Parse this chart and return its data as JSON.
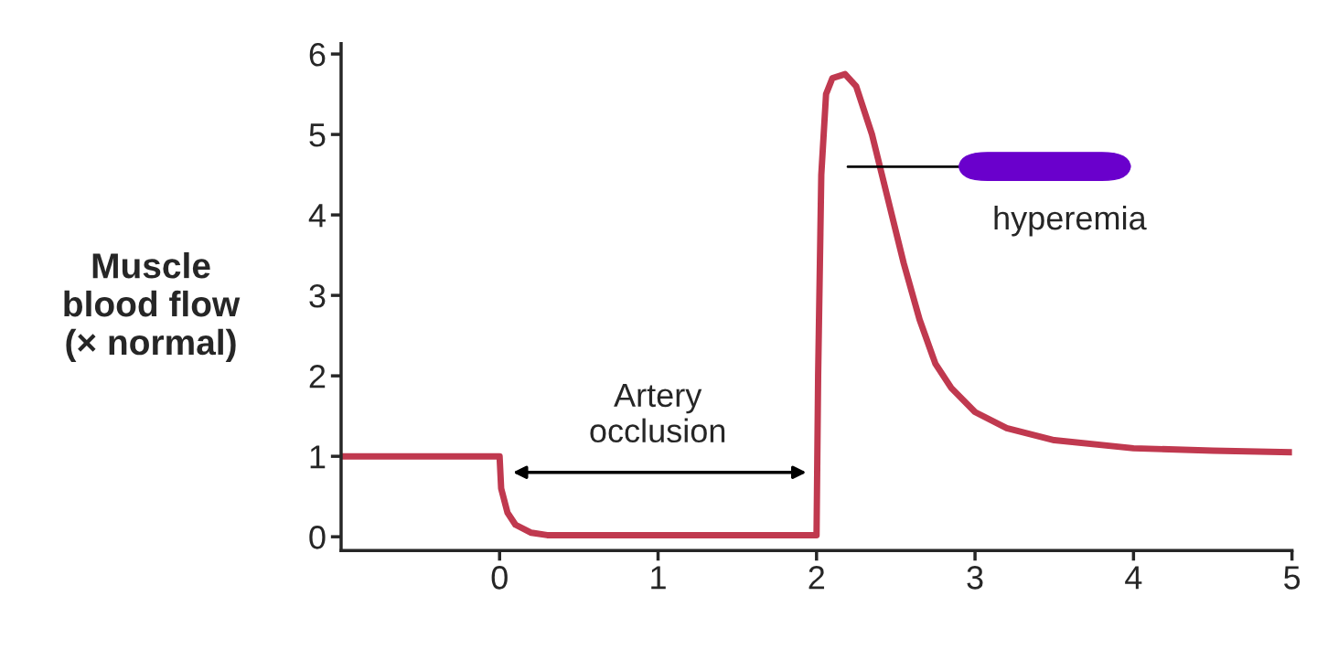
{
  "chart_data": {
    "type": "line",
    "ylabel": "Muscle\nblood flow\n(× normal)",
    "x": [
      -1,
      -0.5,
      0,
      0.01,
      0.05,
      0.1,
      0.2,
      0.3,
      0.5,
      1.0,
      1.5,
      1.99,
      2.0,
      2.01,
      2.03,
      2.06,
      2.1,
      2.18,
      2.25,
      2.35,
      2.45,
      2.55,
      2.65,
      2.75,
      2.85,
      3.0,
      3.2,
      3.5,
      4.0,
      4.5,
      5.0
    ],
    "series": [
      {
        "color": "#c0394f",
        "values": [
          1.0,
          1.0,
          1.0,
          0.6,
          0.3,
          0.15,
          0.05,
          0.02,
          0.02,
          0.02,
          0.02,
          0.02,
          0.02,
          2.0,
          4.5,
          5.5,
          5.7,
          5.75,
          5.6,
          5.0,
          4.2,
          3.4,
          2.7,
          2.15,
          1.85,
          1.55,
          1.35,
          1.2,
          1.1,
          1.07,
          1.05
        ]
      }
    ],
    "xlim": [
      -1,
      5
    ],
    "ylim": [
      -0.17,
      6.13
    ],
    "xticks": [
      0,
      1,
      2,
      3,
      4,
      5
    ],
    "yticks": [
      0,
      1,
      2,
      3,
      4,
      5,
      6
    ],
    "grid": false,
    "legend": false,
    "marker": "none",
    "line_style": "solid",
    "annotations": [
      "Artery\nocclusion",
      "hyperemia"
    ]
  }
}
